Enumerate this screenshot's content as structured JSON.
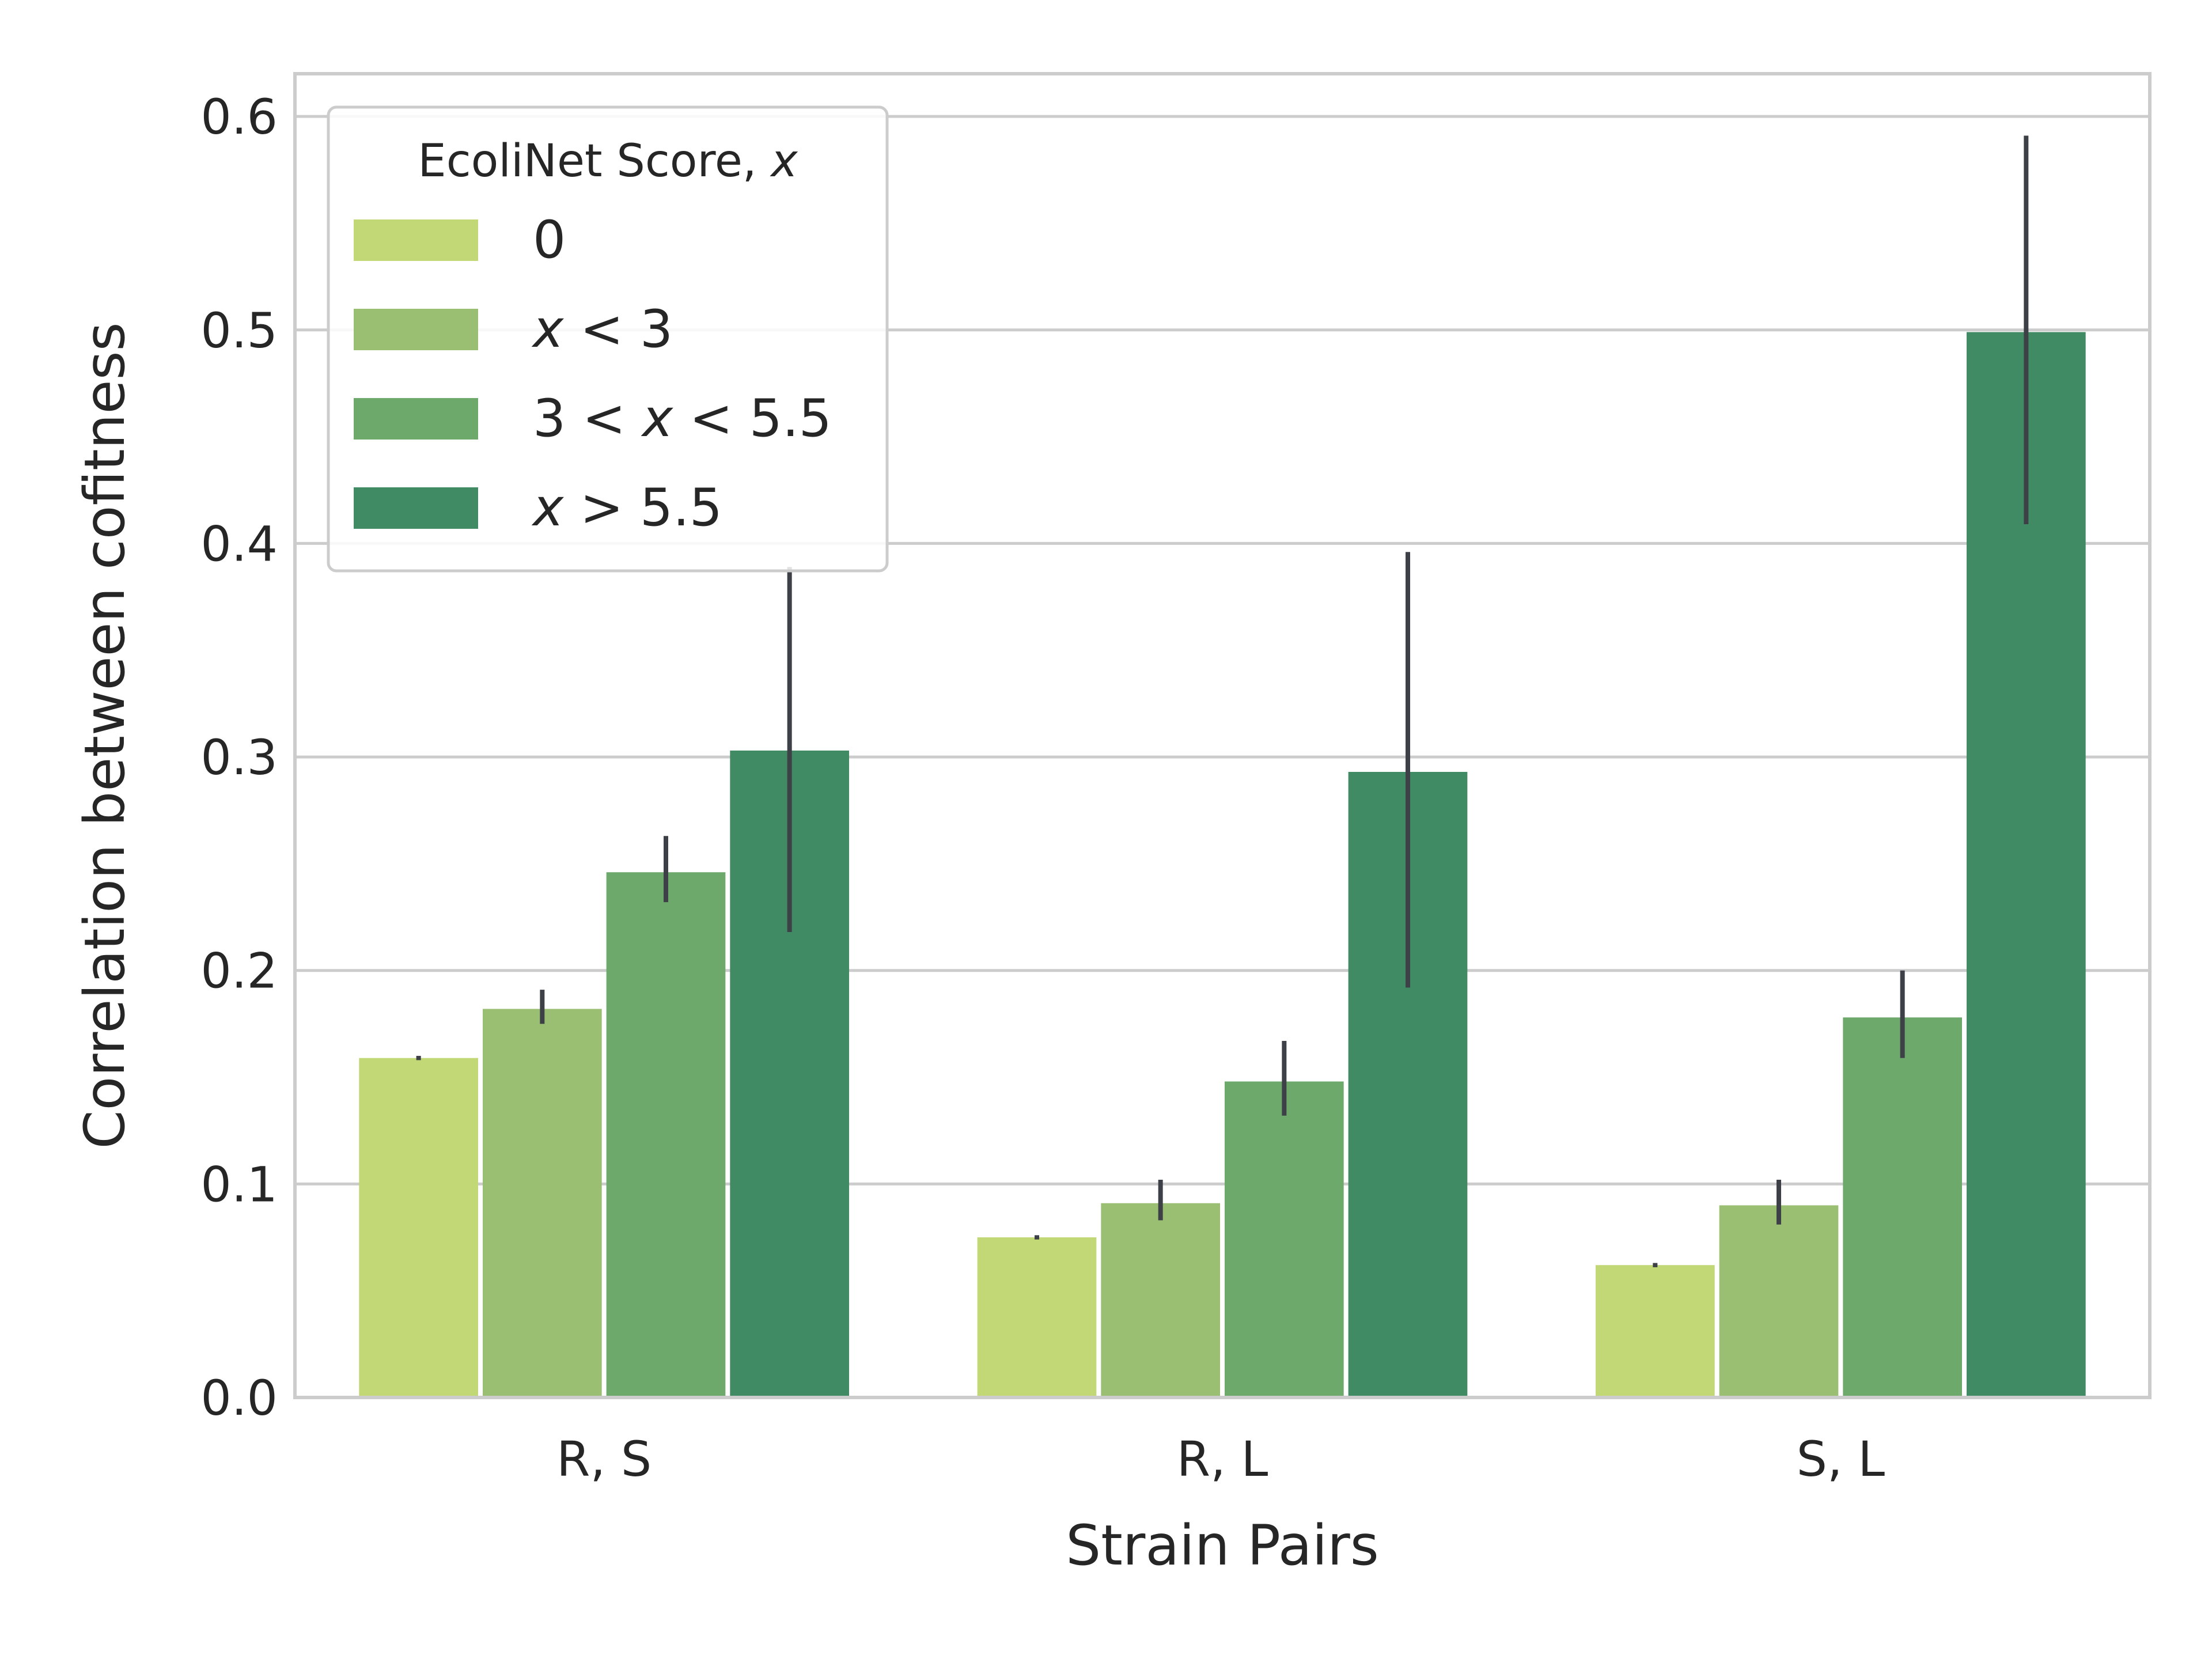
{
  "chart_data": {
    "type": "bar",
    "xlabel": "Strain Pairs",
    "ylabel": "Correlation between cofitness",
    "ylim": [
      0,
      0.62
    ],
    "yticks": [
      0.0,
      0.1,
      0.2,
      0.3,
      0.4,
      0.5,
      0.6
    ],
    "ytick_labels": [
      "0.0",
      "0.1",
      "0.2",
      "0.3",
      "0.4",
      "0.5",
      "0.6"
    ],
    "grid": true,
    "categories": [
      "R, S",
      "R, L",
      "S, L"
    ],
    "legend": {
      "title": "EcoliNet Score, x",
      "placement": "upper-left"
    },
    "series": [
      {
        "name": "0",
        "color": "#c2d775",
        "values": [
          0.159,
          0.075,
          0.062
        ],
        "err_low": [
          0.158,
          0.074,
          0.061
        ],
        "err_high": [
          0.16,
          0.076,
          0.063
        ]
      },
      {
        "name": "x < 3",
        "color": "#9abf72",
        "values": [
          0.182,
          0.091,
          0.09
        ],
        "err_low": [
          0.175,
          0.083,
          0.081
        ],
        "err_high": [
          0.191,
          0.102,
          0.102
        ]
      },
      {
        "name": "3 < x < 5.5",
        "color": "#6ea96c",
        "values": [
          0.246,
          0.148,
          0.178
        ],
        "err_low": [
          0.232,
          0.132,
          0.159
        ],
        "err_high": [
          0.263,
          0.167,
          0.2
        ]
      },
      {
        "name": "x > 5.5",
        "color": "#408b64",
        "values": [
          0.303,
          0.293,
          0.499
        ],
        "err_low": [
          0.218,
          0.192,
          0.409
        ],
        "err_high": [
          0.389,
          0.396,
          0.591
        ]
      }
    ]
  }
}
